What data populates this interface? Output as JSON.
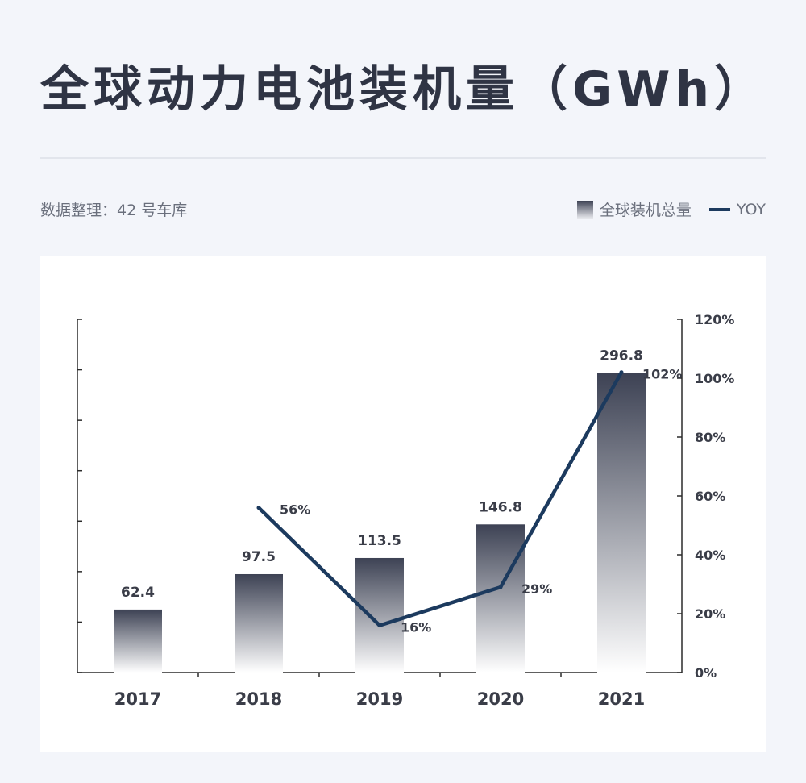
{
  "header": {
    "title": "全球动力电池装机量（GWh）",
    "source": "数据整理：42 号车库"
  },
  "legend": {
    "bar_label": "全球装机总量",
    "line_label": "YOY"
  },
  "colors": {
    "bar_top": "#3d4254",
    "bar_bottom": "#ffffff",
    "line": "#1c3a5e",
    "title": "#2f3444"
  },
  "chart_data": {
    "type": "bar",
    "categories": [
      "2017",
      "2018",
      "2019",
      "2020",
      "2021"
    ],
    "series": [
      {
        "type": "bar",
        "axis": "left",
        "values": [
          62.4,
          97.5,
          113.5,
          146.8,
          296.8
        ],
        "labels": [
          "62.4",
          "97.5",
          "113.5",
          "146.8",
          "296.8"
        ]
      },
      {
        "type": "line",
        "axis": "right",
        "values": [
          null,
          56,
          16,
          29,
          102
        ],
        "labels": [
          "",
          "56%",
          "16%",
          "29%",
          "102%"
        ]
      }
    ],
    "y_left_lim": [
      0,
      350
    ],
    "y_right_lim": [
      0,
      120
    ],
    "y_right_ticks": [
      "0%",
      "20%",
      "40%",
      "60%",
      "80%",
      "100%",
      "120%"
    ]
  }
}
